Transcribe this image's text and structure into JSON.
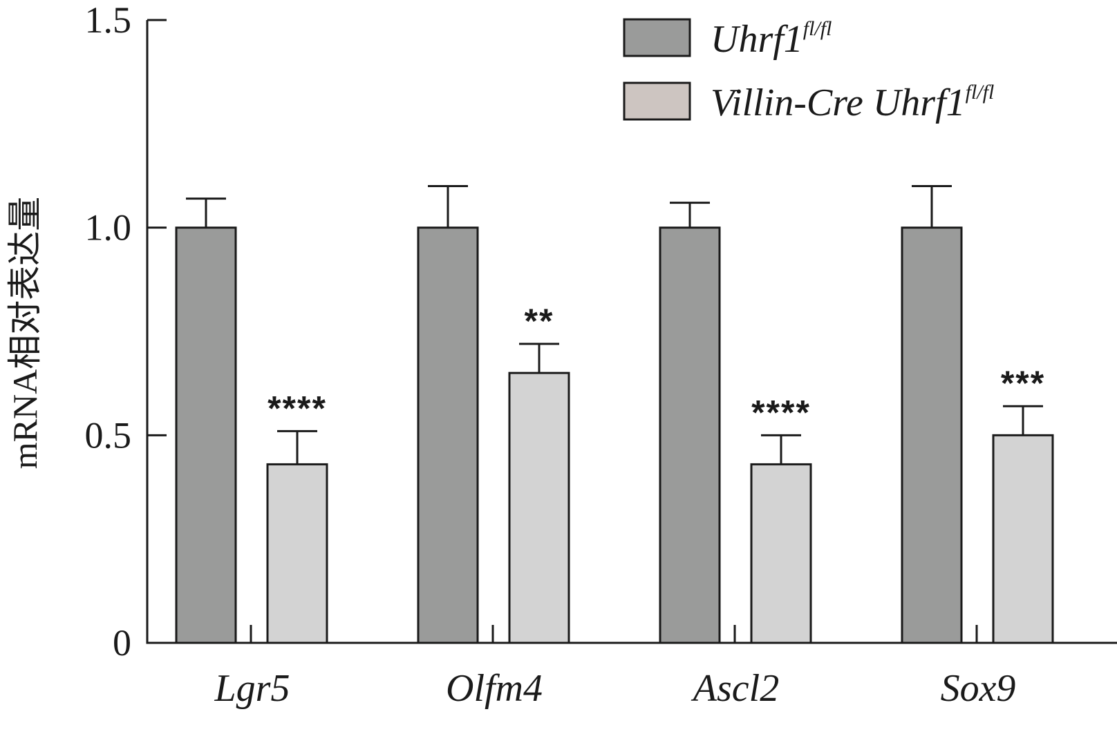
{
  "chart_data": {
    "type": "bar",
    "title": "",
    "ylabel": "mRNA相对表达量",
    "xlabel": "",
    "ylim": [
      0,
      1.5
    ],
    "yticks": [
      {
        "value": 0,
        "label": "0"
      },
      {
        "value": 0.5,
        "label": "0.5"
      },
      {
        "value": 1.0,
        "label": "1.0"
      },
      {
        "value": 1.5,
        "label": "1.5"
      }
    ],
    "categories": [
      "Lgr5",
      "Olfm4",
      "Ascl2",
      "Sox9"
    ],
    "series": [
      {
        "name": "Uhrf1fl/fl",
        "name_main": "Uhrf1",
        "name_sup": "fl/fl",
        "color": "#9a9b9a",
        "values": [
          1.0,
          1.0,
          1.0,
          1.0
        ],
        "errors": [
          0.07,
          0.1,
          0.06,
          0.1
        ]
      },
      {
        "name": "Villin-Cre Uhrf1fl/fl",
        "name_main": "Villin-Cre Uhrf1",
        "name_sup": "fl/fl",
        "color": "#d3d3d3",
        "values": [
          0.43,
          0.65,
          0.43,
          0.5
        ],
        "errors": [
          0.08,
          0.07,
          0.07,
          0.07
        ],
        "significance": [
          "****",
          "**",
          "****",
          "***"
        ]
      }
    ],
    "legend_position": "top-right",
    "legend_swatch_colors": [
      "#9a9b9a",
      "#cdc5c1"
    ],
    "grid": false
  }
}
